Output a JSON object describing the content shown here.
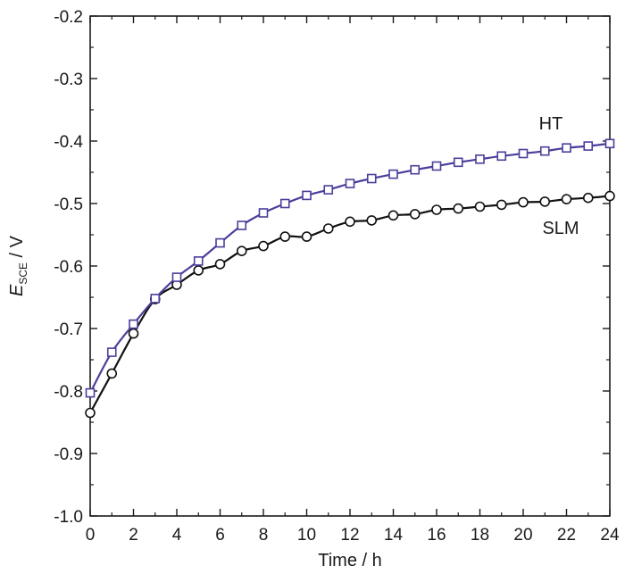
{
  "chart_data": {
    "type": "line",
    "xlabel": "Time / h",
    "ylabel": {
      "main": "E",
      "subscript": "SCE",
      "unit": " / V"
    },
    "xlim": [
      0,
      24
    ],
    "ylim": [
      -1.0,
      -0.2
    ],
    "xticks": [
      0,
      2,
      4,
      6,
      8,
      10,
      12,
      14,
      16,
      18,
      20,
      22,
      24
    ],
    "xtick_labels": [
      "0",
      "2",
      "4",
      "6",
      "8",
      "10",
      "12",
      "14",
      "16",
      "18",
      "20",
      "22",
      "24"
    ],
    "yticks": [
      -1.0,
      -0.9,
      -0.8,
      -0.7,
      -0.6,
      -0.5,
      -0.4,
      -0.3,
      -0.2
    ],
    "ytick_labels": [
      "-1.0",
      "-0.9",
      "-0.8",
      "-0.7",
      "-0.6",
      "-0.5",
      "-0.4",
      "-0.3",
      "-0.2"
    ],
    "grid": false,
    "series": [
      {
        "name": "HT",
        "marker": "square",
        "color": "#4a3f9a",
        "x": [
          0,
          1,
          2,
          3,
          4,
          5,
          6,
          7,
          8,
          9,
          10,
          11,
          12,
          13,
          14,
          15,
          16,
          17,
          18,
          19,
          20,
          21,
          22,
          23,
          24
        ],
        "y": [
          -0.803,
          -0.738,
          -0.693,
          -0.652,
          -0.618,
          -0.592,
          -0.563,
          -0.535,
          -0.515,
          -0.5,
          -0.487,
          -0.478,
          -0.468,
          -0.46,
          -0.453,
          -0.446,
          -0.44,
          -0.434,
          -0.429,
          -0.424,
          -0.42,
          -0.416,
          -0.411,
          -0.408,
          -0.404
        ]
      },
      {
        "name": "SLM",
        "marker": "circle",
        "color": "#111111",
        "x": [
          0,
          1,
          2,
          3,
          4,
          5,
          6,
          7,
          8,
          9,
          10,
          11,
          12,
          13,
          14,
          15,
          16,
          17,
          18,
          19,
          20,
          21,
          22,
          23,
          24
        ],
        "y": [
          -0.835,
          -0.772,
          -0.708,
          -0.653,
          -0.63,
          -0.607,
          -0.597,
          -0.576,
          -0.568,
          -0.553,
          -0.553,
          -0.54,
          -0.529,
          -0.527,
          -0.519,
          -0.517,
          -0.51,
          -0.508,
          -0.505,
          -0.502,
          -0.498,
          -0.497,
          -0.493,
          -0.491,
          -0.488
        ]
      }
    ]
  }
}
